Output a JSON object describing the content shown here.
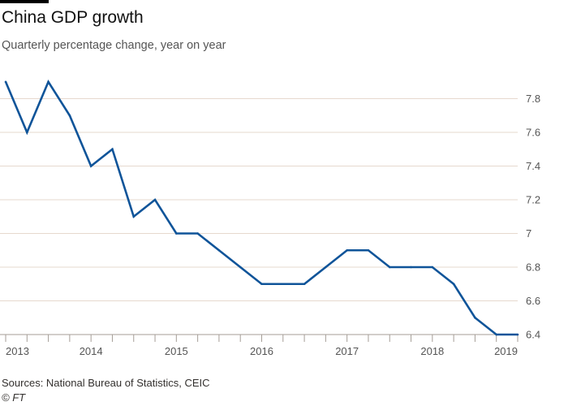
{
  "header": {
    "title": "China GDP growth",
    "subtitle": "Quarterly percentage change, year on year"
  },
  "footer": {
    "source": "Sources: National Bureau of Statistics, CEIC",
    "copyright": "© FT"
  },
  "colors": {
    "line": "#0f5499",
    "grid": "#e6d9ce",
    "axis": "#a59e97",
    "text": "#555555"
  },
  "chart_data": {
    "type": "line",
    "title": "China GDP growth",
    "subtitle": "Quarterly percentage change, year on year",
    "xlabel": "",
    "ylabel": "",
    "ylim": [
      6.4,
      7.8
    ],
    "yticks": [
      6.4,
      6.6,
      6.8,
      7,
      7.2,
      7.4,
      7.6,
      7.8
    ],
    "ytick_labels": [
      "6.4",
      "6.6",
      "6.8",
      "7",
      "7.2",
      "7.4",
      "7.6",
      "7.8"
    ],
    "xticks": [
      "2013",
      "2014",
      "2015",
      "2016",
      "2017",
      "2018",
      "2019"
    ],
    "grid": true,
    "y_axis_position": "right",
    "series": [
      {
        "name": "",
        "x": [
          "2013 Q1",
          "2013 Q2",
          "2013 Q3",
          "2013 Q4",
          "2014 Q1",
          "2014 Q2",
          "2014 Q3",
          "2014 Q4",
          "2015 Q1",
          "2015 Q2",
          "2015 Q3",
          "2015 Q4",
          "2016 Q1",
          "2016 Q2",
          "2016 Q3",
          "2016 Q4",
          "2017 Q1",
          "2017 Q2",
          "2017 Q3",
          "2017 Q4",
          "2018 Q1",
          "2018 Q2",
          "2018 Q3",
          "2018 Q4",
          "2019 Q1"
        ],
        "values": [
          7.9,
          7.6,
          7.9,
          7.7,
          7.4,
          7.5,
          7.1,
          7.2,
          7.0,
          7.0,
          6.9,
          6.8,
          6.7,
          6.7,
          6.7,
          6.8,
          6.9,
          6.9,
          6.8,
          6.8,
          6.8,
          6.7,
          6.5,
          6.4,
          6.4
        ]
      }
    ]
  }
}
